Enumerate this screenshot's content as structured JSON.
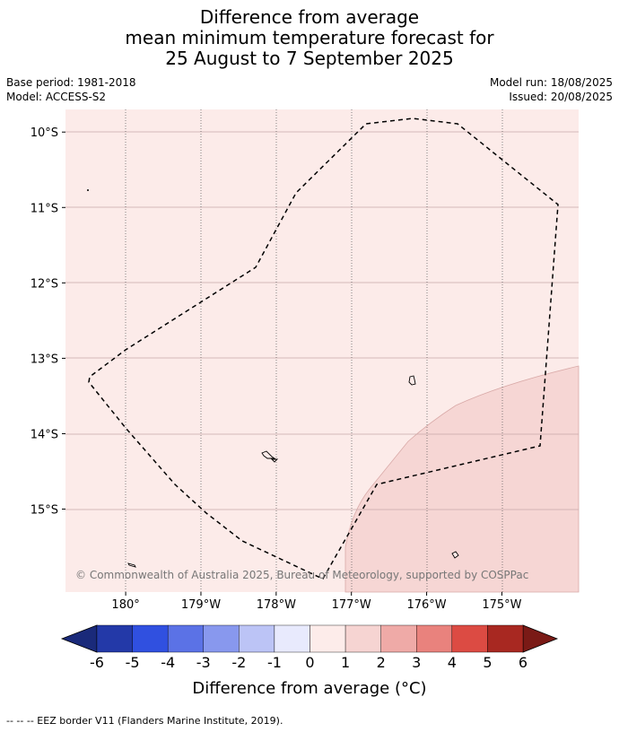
{
  "title": {
    "line1": "Difference from average",
    "line2": "mean minimum temperature forecast for",
    "line3": "25 August to 7 September 2025"
  },
  "meta": {
    "base_period": "Base period: 1981-2018",
    "model": "Model: ACCESS-S2",
    "model_run": "Model run: 18/08/2025",
    "issued": "Issued: 20/08/2025"
  },
  "map": {
    "lon_ticks": [
      {
        "value": -180,
        "label": "180°"
      },
      {
        "value": -179,
        "label": "179°W"
      },
      {
        "value": -178,
        "label": "178°W"
      },
      {
        "value": -177,
        "label": "177°W"
      },
      {
        "value": -176,
        "label": "176°W"
      },
      {
        "value": -175,
        "label": "175°W"
      }
    ],
    "lat_ticks": [
      {
        "value": -10,
        "label": "10°S"
      },
      {
        "value": -11,
        "label": "11°S"
      },
      {
        "value": -12,
        "label": "12°S"
      },
      {
        "value": -13,
        "label": "13°S"
      },
      {
        "value": -14,
        "label": "14°S"
      },
      {
        "value": -15,
        "label": "15°S"
      }
    ],
    "lon_range": [
      -180.8,
      -173.98
    ],
    "lat_range": [
      -16.1,
      -9.7
    ],
    "background_class": "0 to 1",
    "warm_region_class": "1 to 2",
    "copyright": "© Commonwealth of Australia 2025, Bureau of Meteorology, supported by COSPPac"
  },
  "colorbar": {
    "label": "Difference from average (°C)",
    "ticks": [
      "-6",
      "-5",
      "-4",
      "-3",
      "-2",
      "-1",
      "0",
      "1",
      "2",
      "3",
      "4",
      "5",
      "6"
    ],
    "colors": [
      "#2339a8",
      "#3050e0",
      "#5b72e6",
      "#8898ee",
      "#bcc4f6",
      "#e8eafd",
      "#fdecea",
      "#f6d4d2",
      "#efaaa7",
      "#e9827d",
      "#dc4b43",
      "#a82821"
    ],
    "under_color": "#1a2a7a",
    "over_color": "#7a1a16"
  },
  "footer": "-- -- -- EEZ border V11 (Flanders Marine Institute, 2019)."
}
